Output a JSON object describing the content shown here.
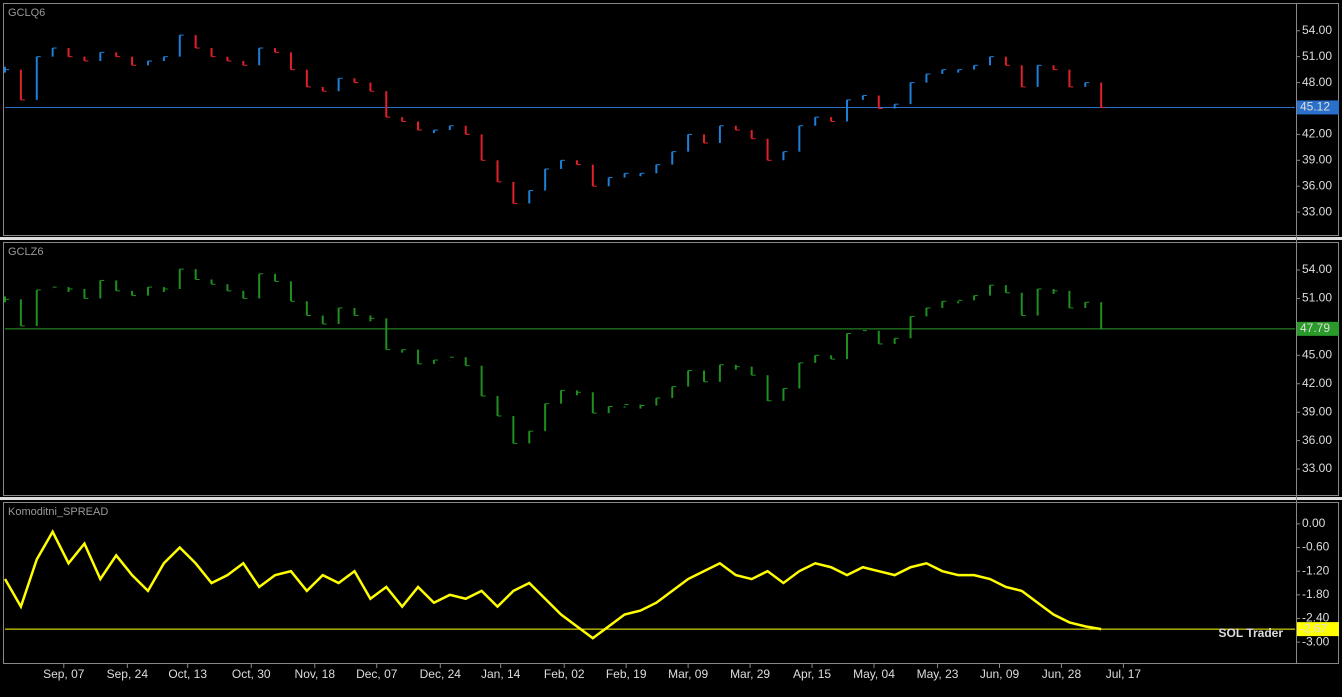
{
  "chart_data": [
    {
      "type": "bar",
      "title": "GCLQ6",
      "up_color": "#1e7fd6",
      "down_color": "#e0202a",
      "level_color": "#2a6fc9",
      "x": [
        0,
        1,
        2,
        3,
        4,
        5,
        6,
        7,
        8,
        9,
        10,
        11,
        12,
        13,
        14,
        15,
        16,
        17,
        18,
        19,
        20,
        21,
        22,
        23,
        24,
        25,
        26,
        27,
        28,
        29,
        30,
        31,
        32,
        33,
        34,
        35,
        36,
        37,
        38,
        39,
        40,
        41,
        42,
        43,
        44,
        45,
        46,
        47,
        48,
        49,
        50,
        51,
        52,
        53,
        54,
        55,
        56,
        57,
        58,
        59,
        60,
        61,
        62,
        63,
        64,
        65,
        66,
        67,
        68,
        69
      ],
      "values": [
        49.5,
        46,
        51,
        52,
        51,
        50.5,
        51.5,
        51,
        50,
        50.5,
        51,
        53.5,
        52,
        51,
        50.5,
        50,
        52,
        51.5,
        49.5,
        47.5,
        47,
        48.5,
        48,
        47,
        44,
        43.5,
        42.5,
        42.5,
        43,
        42,
        39,
        36.5,
        34,
        35.5,
        38,
        39,
        38.5,
        36,
        37,
        37.5,
        37.5,
        38.5,
        40,
        42,
        41,
        43,
        42.5,
        41.5,
        39,
        40,
        43,
        44,
        43.5,
        46,
        46.5,
        45,
        45.5,
        48,
        49,
        49.5,
        49.5,
        50,
        51,
        50,
        47.5,
        50,
        49.5,
        47.5,
        48,
        45.12
      ],
      "xlim": [
        0,
        81.2
      ],
      "ylim": [
        30.35,
        57.1
      ],
      "yticks": [
        {
          "value": 33,
          "label": "33.00"
        },
        {
          "value": 36,
          "label": "36.00"
        },
        {
          "value": 39,
          "label": "39.00"
        },
        {
          "value": 42,
          "label": "42.00"
        },
        {
          "value": 48,
          "label": "48.00"
        },
        {
          "value": 51,
          "label": "51.00"
        },
        {
          "value": 54,
          "label": "54.00"
        }
      ]
    },
    {
      "type": "bar",
      "title": "GCLZ6",
      "up_color": "#1f8f1f",
      "down_color": "#1f8f1f",
      "level_color": "#2a9a2a",
      "x": [
        0,
        1,
        2,
        3,
        4,
        5,
        6,
        7,
        8,
        9,
        10,
        11,
        12,
        13,
        14,
        15,
        16,
        17,
        18,
        19,
        20,
        21,
        22,
        23,
        24,
        25,
        26,
        27,
        28,
        29,
        30,
        31,
        32,
        33,
        34,
        35,
        36,
        37,
        38,
        39,
        40,
        41,
        42,
        43,
        44,
        45,
        46,
        47,
        48,
        49,
        50,
        51,
        52,
        53,
        54,
        55,
        56,
        57,
        58,
        59,
        60,
        61,
        62,
        63,
        64,
        65,
        66,
        67,
        68,
        69
      ],
      "values": [
        50.9,
        48.1,
        51.9,
        52.2,
        52,
        51,
        52.9,
        51.8,
        51.3,
        52.2,
        52,
        54.1,
        53,
        52.5,
        51.8,
        51,
        53.6,
        52.8,
        50.7,
        49.2,
        48.3,
        50,
        49.2,
        48.9,
        45.6,
        45.6,
        44.1,
        44.5,
        44.8,
        43.9,
        40.7,
        38.6,
        35.7,
        37,
        39.9,
        41.3,
        41.1,
        38.9,
        39.6,
        39.8,
        39.7,
        40.5,
        41.7,
        43.4,
        42.2,
        44,
        43.8,
        42.9,
        40.2,
        41.5,
        44.2,
        45,
        44.6,
        47.3,
        47.6,
        46.2,
        46.8,
        49.1,
        50,
        50.7,
        50.8,
        51.3,
        52.4,
        51.6,
        49.2,
        52,
        51.8,
        50,
        50.6,
        47.79
      ],
      "xlim": [
        0,
        81.2
      ],
      "ylim": [
        30.26,
        56.85
      ],
      "yticks": [
        {
          "value": 33,
          "label": "33.00"
        },
        {
          "value": 36,
          "label": "36.00"
        },
        {
          "value": 39,
          "label": "39.00"
        },
        {
          "value": 42,
          "label": "42.00"
        },
        {
          "value": 45,
          "label": "45.00"
        },
        {
          "value": 51,
          "label": "51.00"
        },
        {
          "value": 54,
          "label": "54.00"
        }
      ]
    },
    {
      "type": "line",
      "title": "Komoditni_SPREAD",
      "color": "#ffff00",
      "level_color": "#ffff00",
      "annotation": "SOL Trader",
      "x": [
        0,
        1,
        2,
        3,
        4,
        5,
        6,
        7,
        8,
        9,
        10,
        11,
        12,
        13,
        14,
        15,
        16,
        17,
        18,
        19,
        20,
        21,
        22,
        23,
        24,
        25,
        26,
        27,
        28,
        29,
        30,
        31,
        32,
        33,
        34,
        35,
        36,
        37,
        38,
        39,
        40,
        41,
        42,
        43,
        44,
        45,
        46,
        47,
        48,
        49,
        50,
        51,
        52,
        53,
        54,
        55,
        56,
        57,
        58,
        59,
        60,
        61,
        62,
        63,
        64,
        65,
        66,
        67,
        68,
        69
      ],
      "values": [
        -1.4,
        -2.1,
        -0.9,
        -0.2,
        -1.0,
        -0.5,
        -1.4,
        -0.8,
        -1.3,
        -1.7,
        -1.0,
        -0.6,
        -1.0,
        -1.5,
        -1.3,
        -1.0,
        -1.6,
        -1.3,
        -1.2,
        -1.7,
        -1.3,
        -1.5,
        -1.2,
        -1.9,
        -1.6,
        -2.1,
        -1.6,
        -2.0,
        -1.8,
        -1.9,
        -1.7,
        -2.1,
        -1.7,
        -1.5,
        -1.9,
        -2.3,
        -2.6,
        -2.9,
        -2.6,
        -2.3,
        -2.2,
        -2.0,
        -1.7,
        -1.4,
        -1.2,
        -1.0,
        -1.3,
        -1.4,
        -1.2,
        -1.5,
        -1.2,
        -1.0,
        -1.1,
        -1.3,
        -1.1,
        -1.2,
        -1.3,
        -1.1,
        -1.0,
        -1.2,
        -1.3,
        -1.3,
        -1.4,
        -1.6,
        -1.7,
        -2.0,
        -2.3,
        -2.5,
        -2.6,
        -2.67
      ],
      "xlim": [
        0,
        81.2
      ],
      "ylim": [
        -3.53,
        0.53
      ],
      "yticks": [
        {
          "value": 0,
          "label": "0.00"
        },
        {
          "value": -0.6,
          "label": "-0.60"
        },
        {
          "value": -1.2,
          "label": "-1.20"
        },
        {
          "value": -1.8,
          "label": "-1.80"
        },
        {
          "value": -2.4,
          "label": "-2.40"
        },
        {
          "value": -3,
          "label": "-3.00"
        }
      ],
      "xticks": [
        {
          "value": 3.7,
          "label": "Sep, 07"
        },
        {
          "value": 7.7,
          "label": "Sep, 24"
        },
        {
          "value": 11.5,
          "label": "Oct, 13"
        },
        {
          "value": 15.5,
          "label": "Oct, 30"
        },
        {
          "value": 19.5,
          "label": "Nov, 18"
        },
        {
          "value": 23.4,
          "label": "Dec, 07"
        },
        {
          "value": 27.4,
          "label": "Dec, 24"
        },
        {
          "value": 31.2,
          "label": "Jan, 14"
        },
        {
          "value": 35.2,
          "label": "Feb, 02"
        },
        {
          "value": 39.1,
          "label": "Feb, 19"
        },
        {
          "value": 43.0,
          "label": "Mar, 09"
        },
        {
          "value": 46.9,
          "label": "Mar, 29"
        },
        {
          "value": 50.8,
          "label": "Apr, 15"
        },
        {
          "value": 54.7,
          "label": "May, 04"
        },
        {
          "value": 58.7,
          "label": "May, 23"
        },
        {
          "value": 62.6,
          "label": "Jun, 09"
        },
        {
          "value": 66.5,
          "label": "Jun, 28"
        },
        {
          "value": 70.4,
          "label": "Jul, 17"
        }
      ]
    }
  ]
}
